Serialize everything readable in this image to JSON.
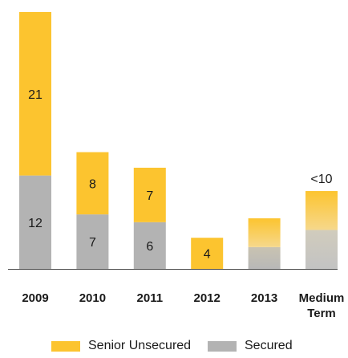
{
  "chart_data": {
    "type": "bar",
    "stacked": true,
    "categories": [
      "2009",
      "2010",
      "2011",
      "2012",
      "2013",
      "Medium Term"
    ],
    "category_lines": [
      [
        "2009"
      ],
      [
        "2010"
      ],
      [
        "2011"
      ],
      [
        "2012"
      ],
      [
        "2013"
      ],
      [
        "Medium",
        "Term"
      ]
    ],
    "series": [
      {
        "name": "Secured",
        "color": "#b3b3b3",
        "values": [
          12,
          7,
          6,
          0,
          2.8,
          5
        ],
        "data_labels": [
          "12",
          "7",
          "6",
          "",
          "",
          ""
        ]
      },
      {
        "name": "Senior Unsecured",
        "color": "#fcc42f",
        "values": [
          21,
          8,
          7,
          4,
          3.7,
          5
        ],
        "data_labels": [
          "21",
          "8",
          "7",
          "4",
          "",
          ""
        ]
      }
    ],
    "fade_categories": [
      "2013",
      "Medium Term"
    ],
    "total_labels": [
      "",
      "",
      "",
      "",
      "",
      "<10"
    ],
    "ylim": [
      0,
      33
    ],
    "legend": [
      "Senior Unsecured",
      "Secured"
    ],
    "legend_position": "bottom",
    "grid": false,
    "title": "",
    "xlabel": "",
    "ylabel": ""
  }
}
